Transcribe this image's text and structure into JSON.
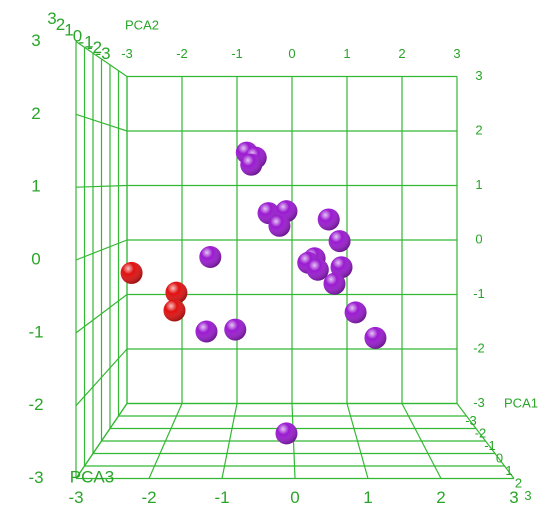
{
  "chart_data": {
    "type": "scatter3d",
    "x_label": "PCA1",
    "y_label": "PCA2",
    "z_label": "PCA3",
    "xlim": [
      -3,
      3
    ],
    "ylim": [
      -3,
      3
    ],
    "zlim": [
      -3,
      3
    ],
    "xticks": [
      -3,
      -2,
      -1,
      0,
      1,
      2,
      3
    ],
    "yticks": [
      -3,
      -2,
      -1,
      0,
      1,
      2,
      3
    ],
    "zticks": [
      -3,
      -2,
      -1,
      0,
      1,
      2,
      3
    ],
    "grid": true,
    "grid_color": "#33b833",
    "series": [
      {
        "color": "#e01010",
        "x": [
          -2.53,
          -1.83,
          -1.86
        ],
        "y": [
          -0.36,
          -0.67,
          -0.95
        ],
        "z": [
          0,
          0,
          0
        ]
      },
      {
        "color": "#9a1ad0",
        "x": [
          -0.73,
          -0.59,
          -0.66,
          -0.39,
          -0.11,
          -0.22,
          0.55,
          0.72,
          -1.3,
          0.33,
          0.23,
          0.75,
          0.38,
          0.64,
          0.97,
          1.28,
          -1.36,
          -0.91,
          -0.11
        ],
        "y": [
          1.53,
          1.45,
          1.34,
          0.58,
          0.61,
          0.38,
          0.48,
          0.14,
          -0.11,
          -0.13,
          -0.2,
          -0.27,
          -0.31,
          -0.53,
          -0.98,
          -1.38,
          -1.28,
          -1.25,
          -2.88
        ],
        "z": [
          0,
          0,
          0,
          0,
          0,
          0,
          0,
          0,
          0,
          0,
          0,
          0,
          0,
          0,
          0,
          0,
          0,
          0,
          0
        ]
      }
    ]
  }
}
